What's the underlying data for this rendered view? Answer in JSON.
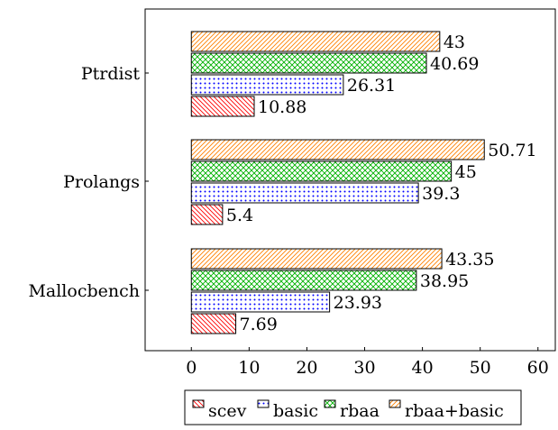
{
  "chart_data": {
    "type": "bar",
    "orientation": "horizontal",
    "categories": [
      "Ptrdist",
      "Prolangs",
      "Mallocbench"
    ],
    "series": [
      {
        "name": "scev",
        "values": [
          10.88,
          5.4,
          7.69
        ],
        "labels": [
          "10.88",
          "5.4",
          "7.69"
        ],
        "color": "#ff0000",
        "pattern": "north-west lines"
      },
      {
        "name": "basic",
        "values": [
          26.31,
          39.3,
          23.93
        ],
        "labels": [
          "26.31",
          "39.3",
          "23.93"
        ],
        "color": "#0000ff",
        "pattern": "dots"
      },
      {
        "name": "rbaa",
        "values": [
          40.69,
          45,
          38.95
        ],
        "labels": [
          "40.69",
          "45",
          "38.95"
        ],
        "color": "#00b000",
        "pattern": "crosshatch"
      },
      {
        "name": "rbaa+basic",
        "values": [
          43,
          50.71,
          43.35
        ],
        "labels": [
          "43",
          "50.71",
          "43.35"
        ],
        "color": "#ff8000",
        "pattern": "north-east lines"
      }
    ],
    "xlim": [
      -8,
      63
    ],
    "xticks": [
      "0",
      "10",
      "20",
      "30",
      "40",
      "50",
      "60"
    ],
    "grid": false,
    "legend": "bottom"
  }
}
